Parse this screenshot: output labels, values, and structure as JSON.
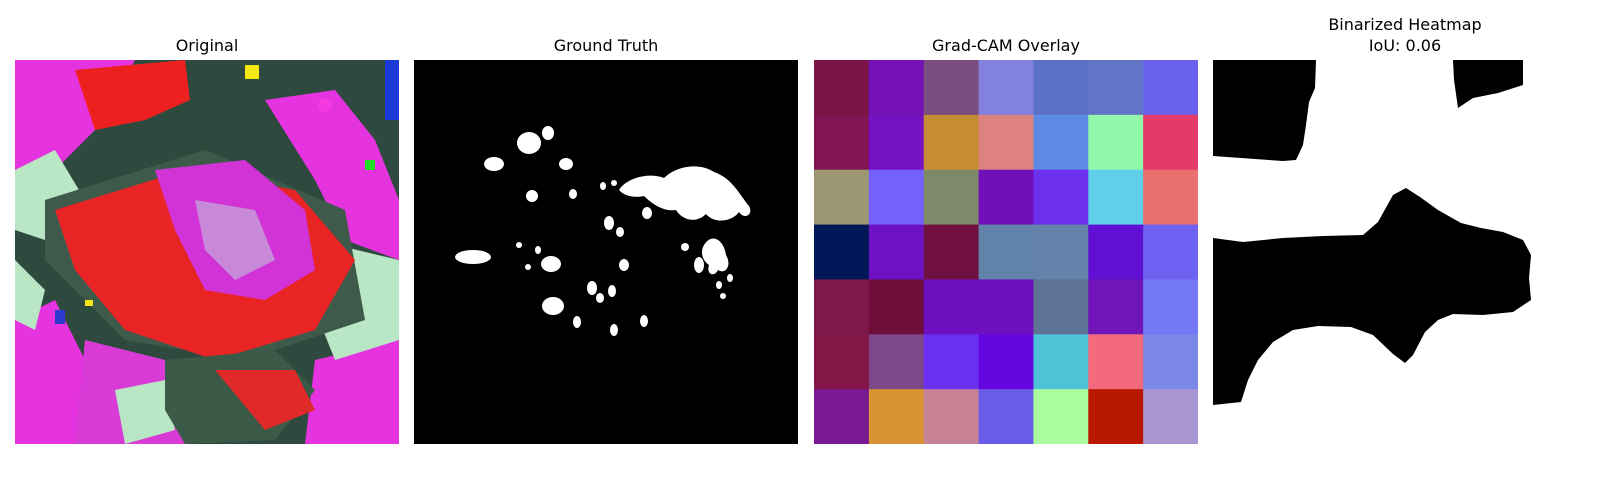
{
  "panels": [
    {
      "title": "Original"
    },
    {
      "title": "Ground Truth"
    },
    {
      "title": "Grad-CAM Overlay"
    },
    {
      "title": "Binarized Heatmap",
      "subtitle": "IoU: 0.06"
    }
  ],
  "gradcam_grid": {
    "rows": 7,
    "cols": 7,
    "cells": [
      [
        "#7a1446",
        "#7412b8",
        "#7a4c80",
        "#8282de",
        "#5a70c6",
        "#6274c6",
        "#6a62ee"
      ],
      [
        "#821654",
        "#7412c2",
        "#c68c34",
        "#de8280",
        "#5e8ae4",
        "#94f8aa",
        "#e43a6a"
      ],
      [
        "#9c9672",
        "#7660fc",
        "#80886a",
        "#7010b8",
        "#6c30ee",
        "#60d0ea",
        "#ea7070"
      ],
      [
        "#001858",
        "#6c12c4",
        "#701040",
        "#6284aa",
        "#6482aa",
        "#6010d2",
        "#6e62f2"
      ],
      [
        "#7e1848",
        "#6e0c3a",
        "#6c10c0",
        "#6c10c0",
        "#5e7496",
        "#7016b8",
        "#7478f6"
      ],
      [
        "#821646",
        "#7c4888",
        "#6c30f0",
        "#6406e0",
        "#4ec2d6",
        "#f26a7c",
        "#7c88e8"
      ],
      [
        "#7a1894",
        "#d89232",
        "#c88296",
        "#6a5ce8",
        "#aafc9e",
        "#b81800",
        "#a896d2"
      ]
    ]
  }
}
